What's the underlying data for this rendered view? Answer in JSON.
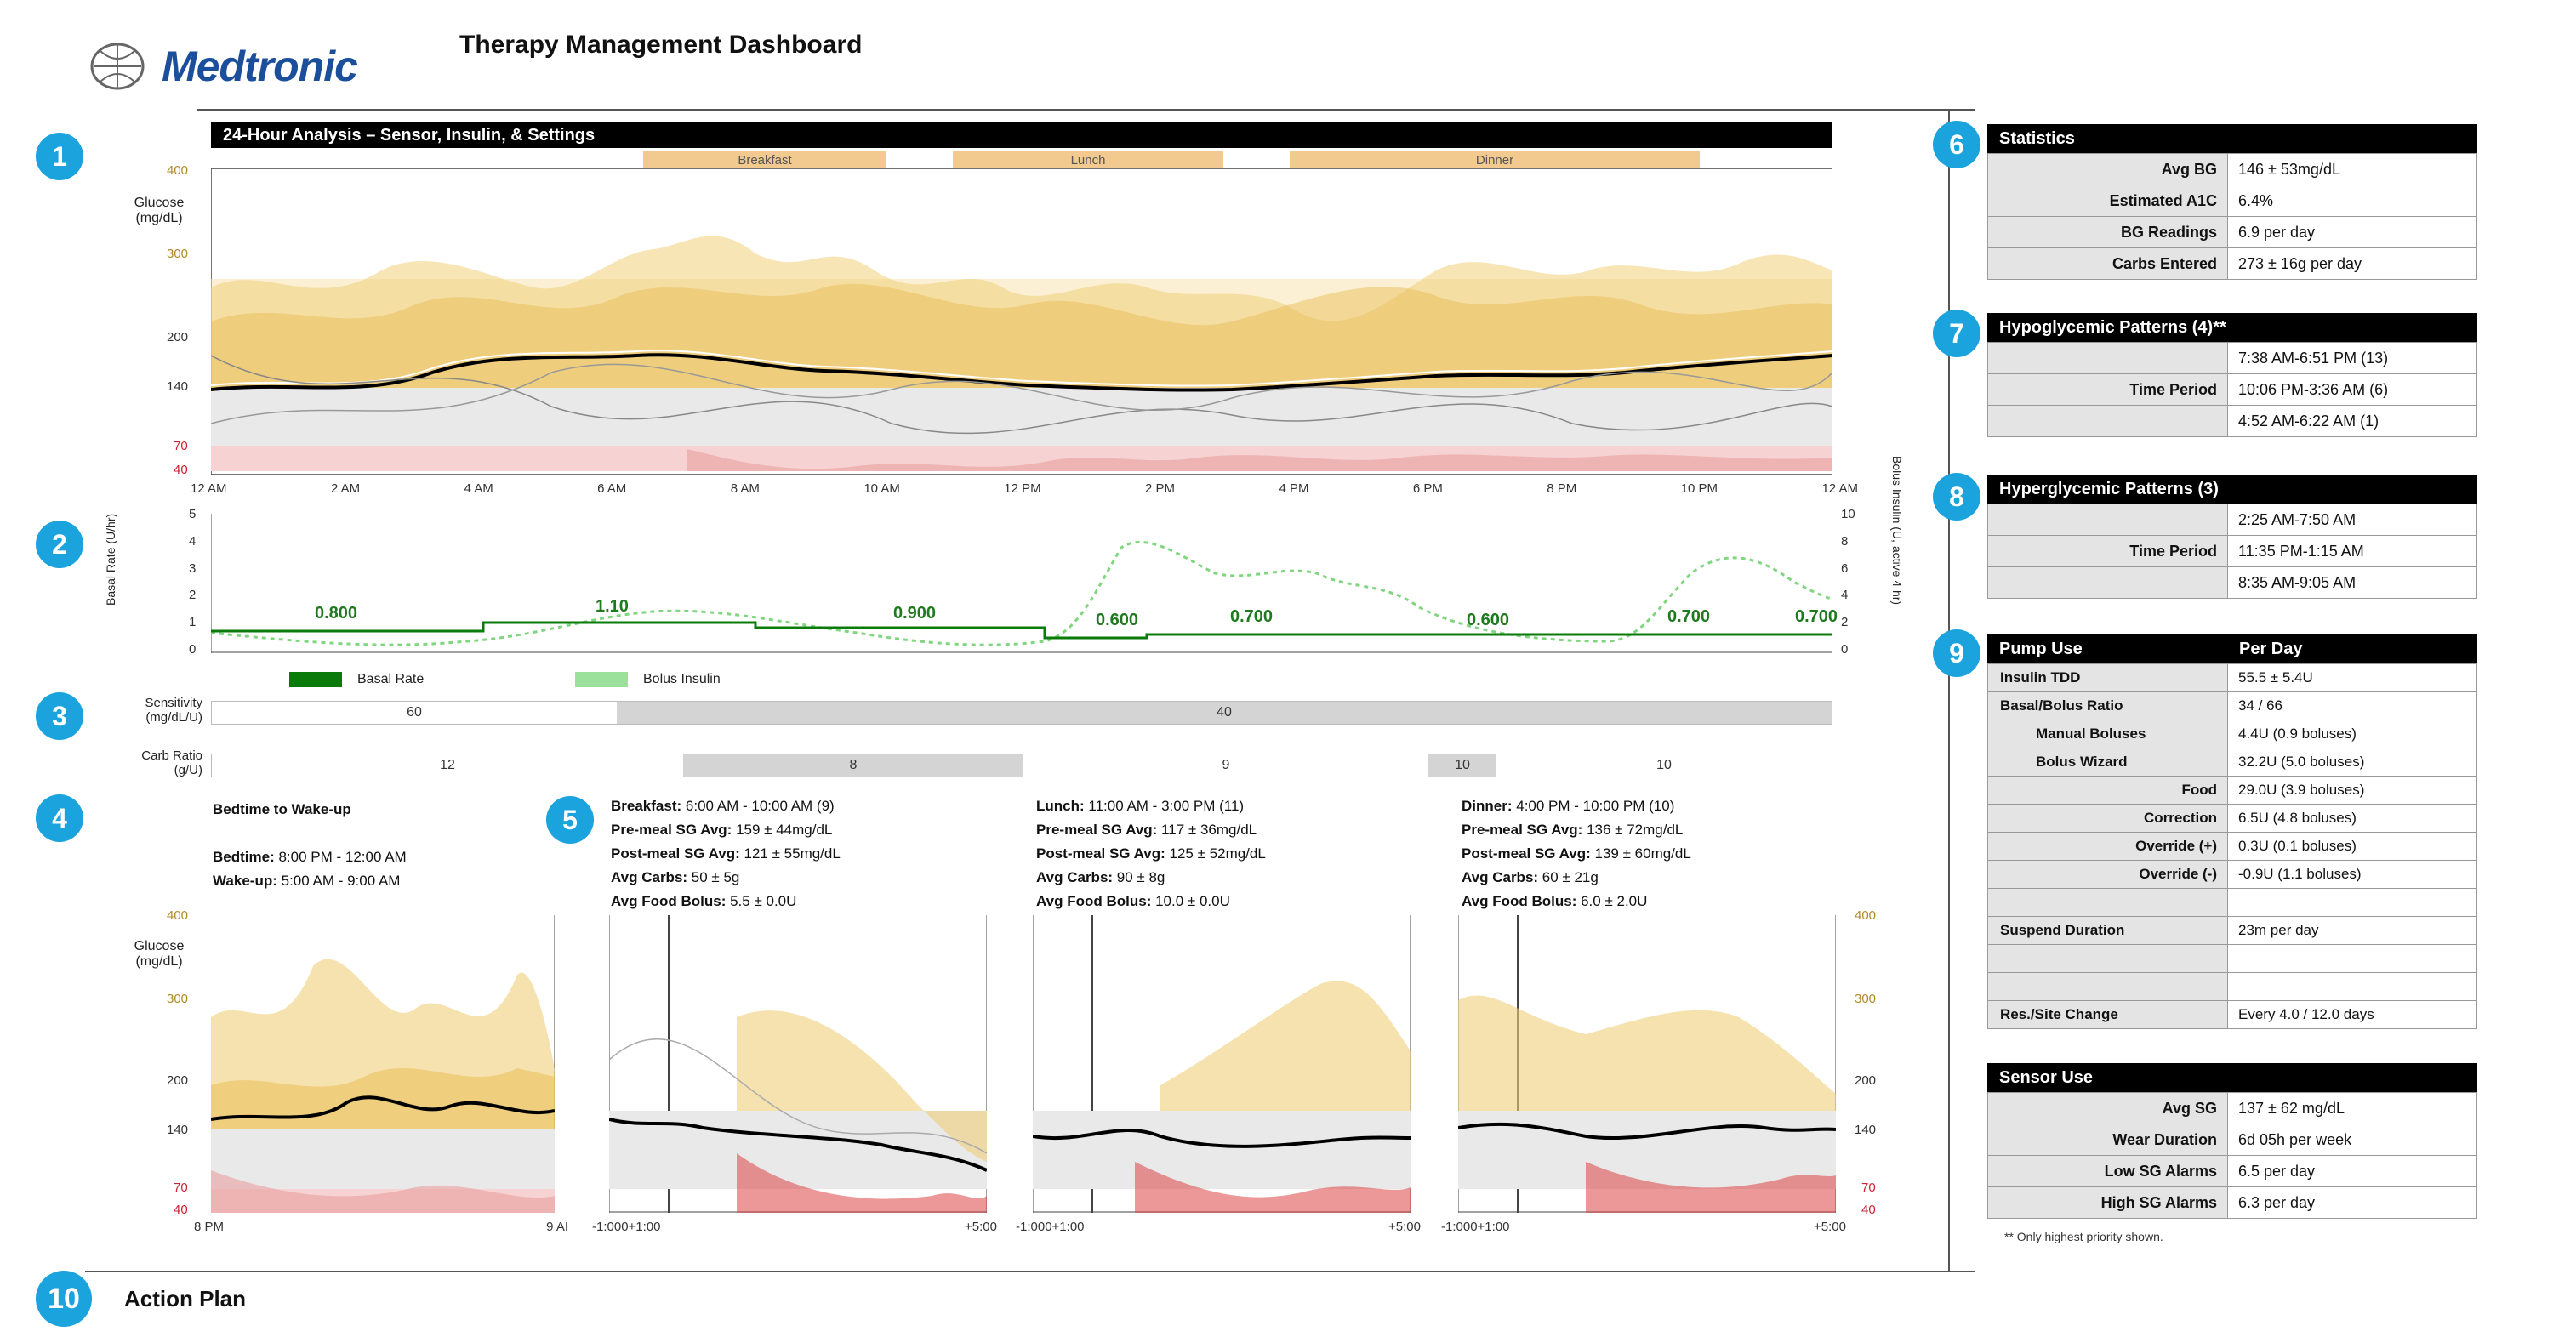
{
  "header": {
    "brand": "Medtronic",
    "title": "Therapy Management Dashboard"
  },
  "badges": [
    "1",
    "2",
    "3",
    "4",
    "5",
    "6",
    "7",
    "8",
    "9",
    "10"
  ],
  "analysis": {
    "title": "24-Hour Analysis – Sensor, Insulin, & Settings",
    "meals": [
      "Breakfast",
      "Lunch",
      "Dinner"
    ],
    "glucose_label_1": "Glucose",
    "glucose_label_2": "(mg/dL)",
    "y_ticks": [
      "400",
      "300",
      "200",
      "140",
      "70",
      "40"
    ],
    "x_ticks": [
      "12 AM",
      "2 AM",
      "4 AM",
      "6 AM",
      "8 AM",
      "10 AM",
      "12 PM",
      "2 PM",
      "4 PM",
      "6 PM",
      "8 PM",
      "10 PM",
      "12 AM"
    ]
  },
  "insulin": {
    "left_axis": "Basal Rate (U/hr)",
    "right_axis": "Bolus Insulin (U, active 4 hr)",
    "left_ticks": [
      "5",
      "4",
      "3",
      "2",
      "1",
      "0"
    ],
    "right_ticks": [
      "10",
      "8",
      "6",
      "4",
      "2",
      "0"
    ],
    "basal_labels": [
      "0.800",
      "1.10",
      "0.900",
      "0.600",
      "0.700",
      "0.600",
      "0.700",
      "0.700"
    ],
    "legend_basal": "Basal Rate",
    "legend_bolus": "Bolus Insulin",
    "basal_color": "#0a7a0a",
    "bolus_color": "#9be09b"
  },
  "sensitivity": {
    "label_1": "Sensitivity",
    "label_2": "(mg/dL/U)",
    "segments": [
      "60",
      "40"
    ]
  },
  "carb_ratio": {
    "label_1": "Carb Ratio",
    "label_2": "(g/U)",
    "segments": [
      "12",
      "8",
      "9",
      "10",
      "10"
    ]
  },
  "periods": {
    "bedtime": {
      "title": "Bedtime to Wake-up",
      "bed_label": "Bedtime:",
      "bed_value": "8:00 PM - 12:00 AM",
      "wake_label": "Wake-up:",
      "wake_value": "5:00 AM - 9:00 AM"
    },
    "breakfast": {
      "l1k": "Breakfast:",
      "l1v": "6:00 AM - 10:00 AM (9)",
      "l2k": "Pre-meal SG Avg:",
      "l2v": "159 ± 44mg/dL",
      "l3k": "Post-meal SG Avg:",
      "l3v": "121 ± 55mg/dL",
      "l4k": "Avg Carbs:",
      "l4v": "50 ± 5g",
      "l5k": "Avg Food Bolus:",
      "l5v": "5.5 ± 0.0U"
    },
    "lunch": {
      "l1k": "Lunch:",
      "l1v": "11:00 AM - 3:00 PM (11)",
      "l2k": "Pre-meal SG Avg:",
      "l2v": "117 ± 36mg/dL",
      "l3k": "Post-meal SG Avg:",
      "l3v": "125 ± 52mg/dL",
      "l4k": "Avg Carbs:",
      "l4v": "90 ± 8g",
      "l5k": "Avg Food Bolus:",
      "l5v": "10.0 ± 0.0U"
    },
    "dinner": {
      "l1k": "Dinner:",
      "l1v": "4:00 PM - 10:00 PM (10)",
      "l2k": "Pre-meal SG Avg:",
      "l2v": "136 ± 72mg/dL",
      "l3k": "Post-meal SG Avg:",
      "l3v": "139 ± 60mg/dL",
      "l4k": "Avg Carbs:",
      "l4v": "60 ± 21g",
      "l5k": "Avg Food Bolus:",
      "l5v": "6.0 ± 2.0U"
    },
    "bed_x_ticks": [
      "8 PM",
      "9 AI"
    ],
    "meal_x_ticks": [
      "-1:00",
      "0",
      "+1:00",
      "+5:00"
    ]
  },
  "statistics": {
    "title": "Statistics",
    "rows": [
      {
        "k": "Avg BG",
        "v": "146 ± 53mg/dL"
      },
      {
        "k": "Estimated A1C",
        "v": "6.4%"
      },
      {
        "k": "BG Readings",
        "v": "6.9 per day"
      },
      {
        "k": "Carbs Entered",
        "v": "273 ± 16g per day"
      }
    ]
  },
  "hypo": {
    "title": "Hypoglycemic Patterns (4)**",
    "label": "Time Period",
    "values": [
      "7:38 AM-6:51 PM (13)",
      "10:06 PM-3:36 AM (6)",
      "4:52 AM-6:22 AM (1)"
    ]
  },
  "hyper": {
    "title": "Hyperglycemic Patterns (3)",
    "label": "Time Period",
    "values": [
      "2:25 AM-7:50 AM",
      "11:35 PM-1:15 AM",
      "8:35 AM-9:05 AM"
    ]
  },
  "pump": {
    "h1": "Pump Use",
    "h2": "Per Day",
    "rows": [
      {
        "k": "Insulin TDD",
        "v": "55.5 ± 5.4U"
      },
      {
        "k": "Basal/Bolus Ratio",
        "v": "34 / 66"
      },
      {
        "k": "Manual Boluses",
        "v": "4.4U (0.9 boluses)"
      },
      {
        "k": "Bolus Wizard",
        "v": "32.2U (5.0 boluses)"
      },
      {
        "k": "Food",
        "v": "29.0U (3.9 boluses)"
      },
      {
        "k": "Correction",
        "v": "6.5U (4.8 boluses)"
      },
      {
        "k": "Override (+)",
        "v": "0.3U (0.1 boluses)"
      },
      {
        "k": "Override (-)",
        "v": "-0.9U (1.1 boluses)"
      },
      {
        "k": "",
        "v": ""
      },
      {
        "k": "Suspend Duration",
        "v": "23m per day"
      },
      {
        "k": "",
        "v": ""
      },
      {
        "k": "",
        "v": ""
      },
      {
        "k": "Res./Site Change",
        "v": "Every 4.0 / 12.0 days"
      }
    ]
  },
  "sensor": {
    "title": "Sensor Use",
    "rows": [
      {
        "k": "Avg SG",
        "v": "137 ± 62 mg/dL"
      },
      {
        "k": "Wear Duration",
        "v": "6d 05h per week"
      },
      {
        "k": "Low SG Alarms",
        "v": "6.5 per day"
      },
      {
        "k": "High SG Alarms",
        "v": "6.3 per day"
      }
    ],
    "footnote": "** Only highest priority shown."
  },
  "action_plan": "Action Plan",
  "colors": {
    "accent": "#1aa3dd",
    "high_band": "#f5d77a",
    "target_band": "#e6e6e6",
    "low_band": "#f2b3b3"
  }
}
